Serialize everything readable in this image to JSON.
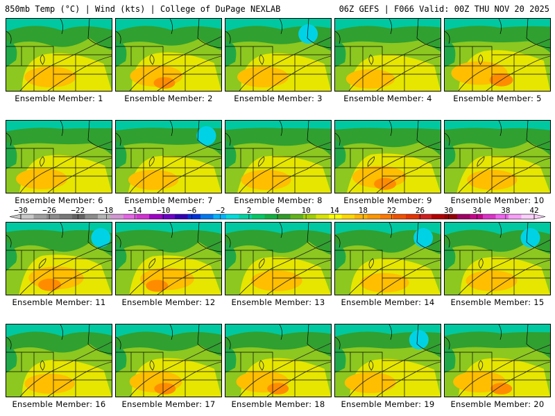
{
  "header": {
    "left": "850mb Temp (°C) | Wind (kts) | College of DuPage NEXLAB",
    "right": "06Z GEFS | F066 Valid: 00Z THU NOV 20 2025"
  },
  "members": [
    {
      "label": "Ensemble Member: 1",
      "warmth": 0.5
    },
    {
      "label": "Ensemble Member: 2",
      "warmth": 0.55
    },
    {
      "label": "Ensemble Member: 3",
      "warmth": 0.5
    },
    {
      "label": "Ensemble Member: 4",
      "warmth": 0.4
    },
    {
      "label": "Ensemble Member: 5",
      "warmth": 0.7
    },
    {
      "label": "Ensemble Member: 6",
      "warmth": 0.5
    },
    {
      "label": "Ensemble Member: 7",
      "warmth": 0.45
    },
    {
      "label": "Ensemble Member: 8",
      "warmth": 0.45
    },
    {
      "label": "Ensemble Member: 9",
      "warmth": 0.6
    },
    {
      "label": "Ensemble Member: 10",
      "warmth": 0.45
    },
    {
      "label": "Ensemble Member: 11",
      "warmth": 0.65
    },
    {
      "label": "Ensemble Member: 12",
      "warmth": 0.6
    },
    {
      "label": "Ensemble Member: 13",
      "warmth": 0.5
    },
    {
      "label": "Ensemble Member: 14",
      "warmth": 0.4
    },
    {
      "label": "Ensemble Member: 15",
      "warmth": 0.5
    },
    {
      "label": "Ensemble Member: 16",
      "warmth": 0.45
    },
    {
      "label": "Ensemble Member: 17",
      "warmth": 0.55
    },
    {
      "label": "Ensemble Member: 18",
      "warmth": 0.55
    },
    {
      "label": "Ensemble Member: 19",
      "warmth": 0.5
    },
    {
      "label": "Ensemble Member: 20",
      "warmth": 0.55
    }
  ],
  "colorbar": {
    "ticks": [
      "-30",
      "-26",
      "-22",
      "-18",
      "-14",
      "-10",
      "-6",
      "-2",
      "2",
      "6",
      "10",
      "14",
      "18",
      "22",
      "26",
      "30",
      "34",
      "38",
      "42"
    ],
    "colors": [
      "#c8c8c8",
      "#a0a0a0",
      "#8c8c8c",
      "#787878",
      "#646464",
      "#8c8c8c",
      "#b4b4b4",
      "#d296d2",
      "#e664e6",
      "#d232d2",
      "#a000c8",
      "#6e00c8",
      "#3200b4",
      "#0032dc",
      "#0078f0",
      "#00b4ff",
      "#00dcdc",
      "#00d2a0",
      "#00c864",
      "#10b040",
      "#309c28",
      "#60b418",
      "#a0d000",
      "#d8e400",
      "#ffff00",
      "#ffd700",
      "#ffb400",
      "#ff9600",
      "#ff7800",
      "#f05000",
      "#e63200",
      "#d21e1e",
      "#b40000",
      "#960000",
      "#a00064",
      "#c8008c",
      "#dc32c8",
      "#f064f0",
      "#f8a0f8",
      "#fcd0fc"
    ]
  }
}
